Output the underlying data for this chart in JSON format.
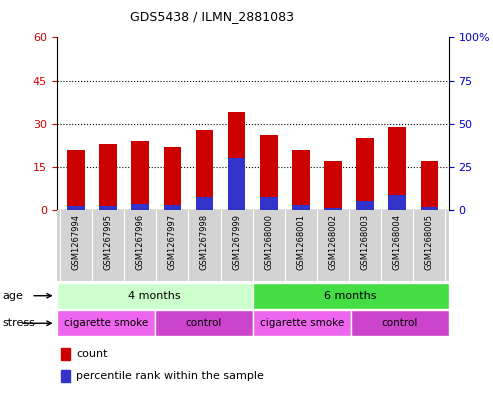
{
  "title": "GDS5438 / ILMN_2881083",
  "samples": [
    "GSM1267994",
    "GSM1267995",
    "GSM1267996",
    "GSM1267997",
    "GSM1267998",
    "GSM1267999",
    "GSM1268000",
    "GSM1268001",
    "GSM1268002",
    "GSM1268003",
    "GSM1268004",
    "GSM1268005"
  ],
  "counts": [
    21,
    23,
    24,
    22,
    28,
    34,
    26,
    21,
    17,
    25,
    29,
    17
  ],
  "percentile_ranks": [
    2.5,
    2.5,
    3.5,
    3.0,
    7.5,
    30,
    7.5,
    3.0,
    1.5,
    5.5,
    9.0,
    2.0
  ],
  "bar_color": "#cc0000",
  "percentile_color": "#3333cc",
  "left_ylim": [
    0,
    60
  ],
  "right_ylim": [
    0,
    100
  ],
  "left_yticks": [
    0,
    15,
    30,
    45,
    60
  ],
  "right_yticks": [
    0,
    25,
    50,
    75,
    100
  ],
  "right_yticklabels": [
    "0",
    "25",
    "50",
    "75",
    "100%"
  ],
  "grid_values": [
    15,
    30,
    45
  ],
  "bar_width": 0.55,
  "age_groups": [
    {
      "label": "4 months",
      "start": 0,
      "end": 6,
      "color": "#ccffcc"
    },
    {
      "label": "6 months",
      "start": 6,
      "end": 12,
      "color": "#44dd44"
    }
  ],
  "stress_groups": [
    {
      "label": "cigarette smoke",
      "start": 0,
      "end": 3,
      "color": "#ee66ee"
    },
    {
      "label": "control",
      "start": 3,
      "end": 6,
      "color": "#cc44cc"
    },
    {
      "label": "cigarette smoke",
      "start": 6,
      "end": 9,
      "color": "#ee66ee"
    },
    {
      "label": "control",
      "start": 9,
      "end": 12,
      "color": "#cc44cc"
    }
  ],
  "tick_color_left": "#cc0000",
  "tick_color_right": "#0000cc",
  "sample_bg_color": "#d3d3d3",
  "legend_count_color": "#cc0000",
  "legend_pct_color": "#3333cc"
}
